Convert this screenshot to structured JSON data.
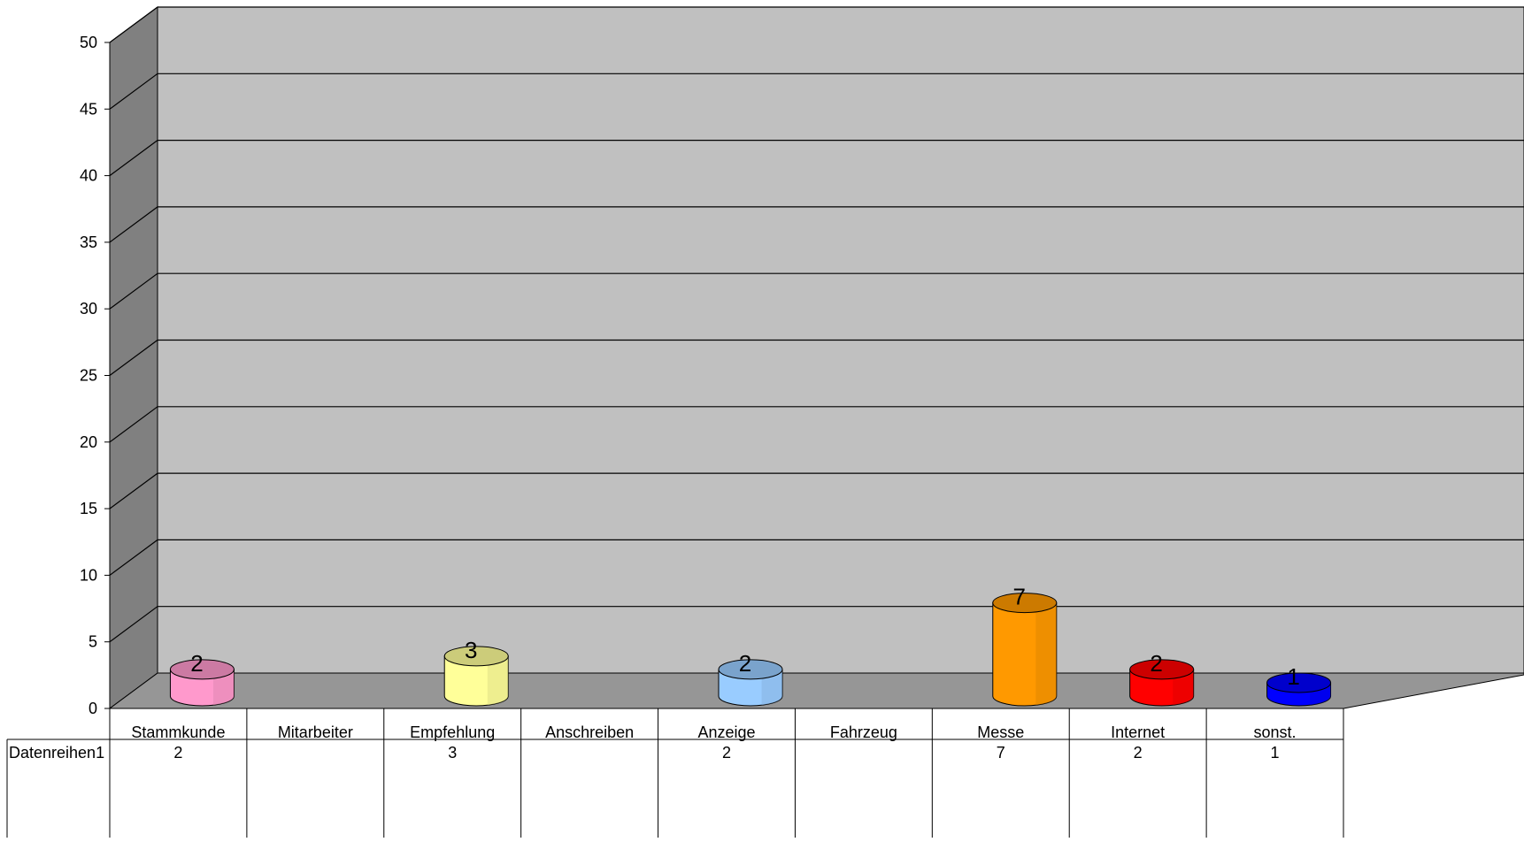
{
  "chart_data": {
    "type": "bar",
    "style": "3d-cylinder",
    "categories": [
      "Stammkunde",
      "Mitarbeiter",
      "Empfehlung",
      "Anschreiben",
      "Anzeige",
      "Fahrzeug",
      "Messe",
      "Internet",
      "sonst."
    ],
    "series": [
      {
        "name": "Datenreihen1",
        "values": [
          2,
          null,
          3,
          null,
          2,
          null,
          7,
          2,
          1
        ],
        "table_values": [
          "2",
          "",
          "3",
          "",
          "2",
          "",
          "7",
          "2",
          "1"
        ],
        "data_labels": [
          "2",
          "",
          "3",
          "",
          "2",
          "",
          "7",
          "2",
          "1"
        ],
        "colors": [
          "#ff99cc",
          null,
          "#ffff99",
          null,
          "#99ccff",
          null,
          "#ff9900",
          "#ff0000",
          "#0000ff"
        ]
      }
    ],
    "ylim": [
      0,
      50
    ],
    "yticks": [
      "0",
      "5",
      "10",
      "15",
      "20",
      "25",
      "30",
      "35",
      "40",
      "45",
      "50"
    ],
    "grid": true,
    "data_table": true,
    "colors": {
      "back_wall": "#c0c0c0",
      "side_wall": "#808080",
      "floor": "#969696"
    }
  }
}
